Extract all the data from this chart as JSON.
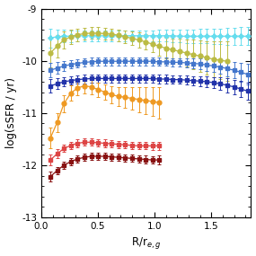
{
  "xlabel": "R/r$_{e,g}$",
  "ylabel": "log(sSFR / yr)",
  "xlim": [
    0.0,
    1.85
  ],
  "ylim": [
    -13.0,
    -9.0
  ],
  "yticks": [
    -13,
    -12,
    -11,
    -10,
    -9
  ],
  "xticks": [
    0.0,
    0.5,
    1.0,
    1.5
  ],
  "background_color": "#ffffff",
  "curves": [
    {
      "name": "cyan_disk",
      "color": "#66DDEE",
      "marker": "P",
      "markersize": 3.5,
      "linewidth": 0.9,
      "x": [
        0.08,
        0.14,
        0.2,
        0.26,
        0.32,
        0.38,
        0.44,
        0.5,
        0.56,
        0.62,
        0.68,
        0.74,
        0.8,
        0.86,
        0.92,
        0.98,
        1.04,
        1.1,
        1.16,
        1.22,
        1.28,
        1.34,
        1.4,
        1.46,
        1.52,
        1.58,
        1.64,
        1.7,
        1.76,
        1.82
      ],
      "y": [
        -9.56,
        -9.54,
        -9.53,
        -9.53,
        -9.52,
        -9.52,
        -9.52,
        -9.52,
        -9.52,
        -9.52,
        -9.52,
        -9.52,
        -9.52,
        -9.52,
        -9.52,
        -9.52,
        -9.52,
        -9.52,
        -9.52,
        -9.53,
        -9.53,
        -9.53,
        -9.53,
        -9.53,
        -9.53,
        -9.53,
        -9.53,
        -9.53,
        -9.53,
        -9.53
      ],
      "yerr": [
        0.18,
        0.14,
        0.12,
        0.11,
        0.1,
        0.1,
        0.1,
        0.1,
        0.1,
        0.1,
        0.1,
        0.1,
        0.1,
        0.1,
        0.1,
        0.1,
        0.11,
        0.11,
        0.12,
        0.12,
        0.13,
        0.13,
        0.14,
        0.14,
        0.15,
        0.15,
        0.16,
        0.16,
        0.17,
        0.17
      ]
    },
    {
      "name": "yellow_disk",
      "color": "#BBBB44",
      "marker": "o",
      "markersize": 3.5,
      "linewidth": 0.9,
      "x": [
        0.08,
        0.14,
        0.2,
        0.26,
        0.32,
        0.38,
        0.44,
        0.5,
        0.56,
        0.62,
        0.68,
        0.74,
        0.8,
        0.86,
        0.92,
        0.98,
        1.04,
        1.1,
        1.16,
        1.22,
        1.28,
        1.34,
        1.4,
        1.46,
        1.52,
        1.58,
        1.64
      ],
      "y": [
        -9.85,
        -9.72,
        -9.6,
        -9.54,
        -9.5,
        -9.48,
        -9.47,
        -9.47,
        -9.48,
        -9.49,
        -9.51,
        -9.54,
        -9.57,
        -9.6,
        -9.64,
        -9.68,
        -9.72,
        -9.76,
        -9.79,
        -9.82,
        -9.85,
        -9.88,
        -9.91,
        -9.94,
        -9.97,
        -9.99,
        -10.01
      ],
      "yerr": [
        0.28,
        0.22,
        0.17,
        0.14,
        0.12,
        0.11,
        0.11,
        0.11,
        0.11,
        0.11,
        0.11,
        0.12,
        0.13,
        0.14,
        0.15,
        0.16,
        0.18,
        0.2,
        0.22,
        0.24,
        0.26,
        0.28,
        0.3,
        0.32,
        0.34,
        0.36,
        0.38
      ]
    },
    {
      "name": "blue_disk",
      "color": "#4477CC",
      "marker": "s",
      "markersize": 3.5,
      "linewidth": 0.9,
      "x": [
        0.08,
        0.14,
        0.2,
        0.26,
        0.32,
        0.38,
        0.44,
        0.5,
        0.56,
        0.62,
        0.68,
        0.74,
        0.8,
        0.86,
        0.92,
        0.98,
        1.04,
        1.1,
        1.16,
        1.22,
        1.28,
        1.34,
        1.4,
        1.46,
        1.52,
        1.58,
        1.64,
        1.7,
        1.76,
        1.82
      ],
      "y": [
        -10.18,
        -10.14,
        -10.1,
        -10.07,
        -10.05,
        -10.03,
        -10.02,
        -10.01,
        -10.01,
        -10.01,
        -10.01,
        -10.01,
        -10.01,
        -10.01,
        -10.01,
        -10.01,
        -10.02,
        -10.02,
        -10.03,
        -10.03,
        -10.04,
        -10.05,
        -10.06,
        -10.08,
        -10.1,
        -10.12,
        -10.15,
        -10.18,
        -10.22,
        -10.26
      ],
      "yerr": [
        0.14,
        0.11,
        0.09,
        0.08,
        0.08,
        0.08,
        0.08,
        0.08,
        0.08,
        0.08,
        0.08,
        0.08,
        0.08,
        0.08,
        0.08,
        0.08,
        0.08,
        0.08,
        0.08,
        0.08,
        0.09,
        0.09,
        0.1,
        0.11,
        0.12,
        0.13,
        0.14,
        0.16,
        0.18,
        0.2
      ]
    },
    {
      "name": "darkblue_disk",
      "color": "#2233AA",
      "marker": "s",
      "markersize": 3.5,
      "linewidth": 0.9,
      "x": [
        0.08,
        0.14,
        0.2,
        0.26,
        0.32,
        0.38,
        0.44,
        0.5,
        0.56,
        0.62,
        0.68,
        0.74,
        0.8,
        0.86,
        0.92,
        0.98,
        1.04,
        1.1,
        1.16,
        1.22,
        1.28,
        1.34,
        1.4,
        1.46,
        1.52,
        1.58,
        1.64,
        1.7,
        1.76,
        1.82
      ],
      "y": [
        -10.48,
        -10.44,
        -10.4,
        -10.38,
        -10.36,
        -10.35,
        -10.34,
        -10.34,
        -10.34,
        -10.34,
        -10.34,
        -10.34,
        -10.34,
        -10.34,
        -10.34,
        -10.34,
        -10.35,
        -10.35,
        -10.36,
        -10.36,
        -10.37,
        -10.38,
        -10.39,
        -10.4,
        -10.42,
        -10.44,
        -10.47,
        -10.5,
        -10.54,
        -10.58
      ],
      "yerr": [
        0.13,
        0.1,
        0.09,
        0.08,
        0.08,
        0.08,
        0.08,
        0.08,
        0.08,
        0.08,
        0.08,
        0.08,
        0.08,
        0.08,
        0.08,
        0.08,
        0.08,
        0.08,
        0.08,
        0.08,
        0.09,
        0.09,
        0.1,
        0.1,
        0.11,
        0.12,
        0.13,
        0.14,
        0.15,
        0.17
      ]
    },
    {
      "name": "orange_bulge",
      "color": "#EE9922",
      "marker": "o",
      "markersize": 3.5,
      "linewidth": 0.9,
      "x": [
        0.08,
        0.14,
        0.2,
        0.26,
        0.32,
        0.38,
        0.44,
        0.5,
        0.56,
        0.62,
        0.68,
        0.74,
        0.8,
        0.86,
        0.92,
        0.98,
        1.04
      ],
      "y": [
        -11.48,
        -11.18,
        -10.82,
        -10.62,
        -10.52,
        -10.48,
        -10.5,
        -10.55,
        -10.6,
        -10.65,
        -10.68,
        -10.7,
        -10.72,
        -10.74,
        -10.76,
        -10.78,
        -10.8
      ],
      "yerr": [
        0.2,
        0.18,
        0.16,
        0.15,
        0.14,
        0.14,
        0.14,
        0.14,
        0.15,
        0.16,
        0.18,
        0.2,
        0.22,
        0.24,
        0.26,
        0.28,
        0.3
      ]
    },
    {
      "name": "red_bulge",
      "color": "#DD4444",
      "marker": "s",
      "markersize": 3.5,
      "linewidth": 0.9,
      "x": [
        0.08,
        0.14,
        0.2,
        0.26,
        0.32,
        0.38,
        0.44,
        0.5,
        0.56,
        0.62,
        0.68,
        0.74,
        0.8,
        0.86,
        0.92,
        0.98,
        1.04
      ],
      "y": [
        -11.9,
        -11.78,
        -11.68,
        -11.62,
        -11.58,
        -11.56,
        -11.56,
        -11.57,
        -11.58,
        -11.59,
        -11.6,
        -11.61,
        -11.62,
        -11.63,
        -11.63,
        -11.63,
        -11.63
      ],
      "yerr": [
        0.1,
        0.08,
        0.07,
        0.07,
        0.07,
        0.07,
        0.07,
        0.07,
        0.07,
        0.07,
        0.07,
        0.07,
        0.07,
        0.07,
        0.07,
        0.08,
        0.08
      ]
    },
    {
      "name": "darkred_bulge",
      "color": "#881111",
      "marker": "s",
      "markersize": 3.5,
      "linewidth": 0.9,
      "x": [
        0.08,
        0.14,
        0.2,
        0.26,
        0.32,
        0.38,
        0.44,
        0.5,
        0.56,
        0.62,
        0.68,
        0.74,
        0.8,
        0.86,
        0.92,
        0.98,
        1.04
      ],
      "y": [
        -12.22,
        -12.1,
        -12.0,
        -11.93,
        -11.88,
        -11.85,
        -11.83,
        -11.83,
        -11.83,
        -11.84,
        -11.85,
        -11.86,
        -11.87,
        -11.88,
        -11.89,
        -11.9,
        -11.9
      ],
      "yerr": [
        0.09,
        0.07,
        0.07,
        0.07,
        0.07,
        0.07,
        0.07,
        0.07,
        0.07,
        0.07,
        0.07,
        0.07,
        0.07,
        0.07,
        0.07,
        0.07,
        0.08
      ]
    }
  ]
}
